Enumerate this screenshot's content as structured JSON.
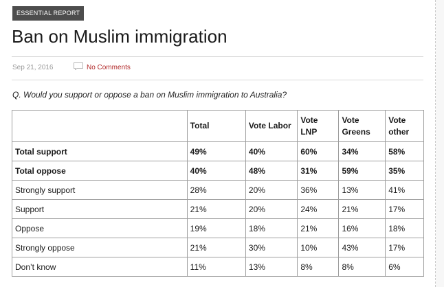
{
  "article": {
    "category_tag": "ESSENTIAL REPORT",
    "title": "Ban on Muslim immigration",
    "date": "Sep 21, 2016",
    "comments_link": "No Comments",
    "question": "Q. Would you support or oppose a ban on Muslim immigration to Australia?"
  },
  "table": {
    "headers": [
      "",
      "Total",
      "Vote Labor",
      "Vote LNP",
      "Vote Greens",
      "Vote other"
    ],
    "rows": [
      {
        "label": "Total support",
        "bold": true,
        "values": [
          "49%",
          "40%",
          "60%",
          "34%",
          "58%"
        ]
      },
      {
        "label": "Total oppose",
        "bold": true,
        "values": [
          "40%",
          "48%",
          "31%",
          "59%",
          "35%"
        ]
      },
      {
        "label": "Strongly support",
        "bold": false,
        "values": [
          "28%",
          "20%",
          "36%",
          "13%",
          "41%"
        ]
      },
      {
        "label": "Support",
        "bold": false,
        "values": [
          "21%",
          "20%",
          "24%",
          "21%",
          "17%"
        ]
      },
      {
        "label": "Oppose",
        "bold": false,
        "values": [
          "19%",
          "18%",
          "21%",
          "16%",
          "18%"
        ]
      },
      {
        "label": "Strongly oppose",
        "bold": false,
        "values": [
          "21%",
          "30%",
          "10%",
          "43%",
          "17%"
        ]
      },
      {
        "label": "Don’t know",
        "bold": false,
        "values": [
          "11%",
          "13%",
          "8%",
          "8%",
          "6%"
        ]
      }
    ]
  },
  "colors": {
    "tag_background": "#4d4d4d",
    "link": "#b22a2a",
    "table_border": "#9e9e9e"
  },
  "icons": {
    "comments": "speech-bubble-icon"
  }
}
